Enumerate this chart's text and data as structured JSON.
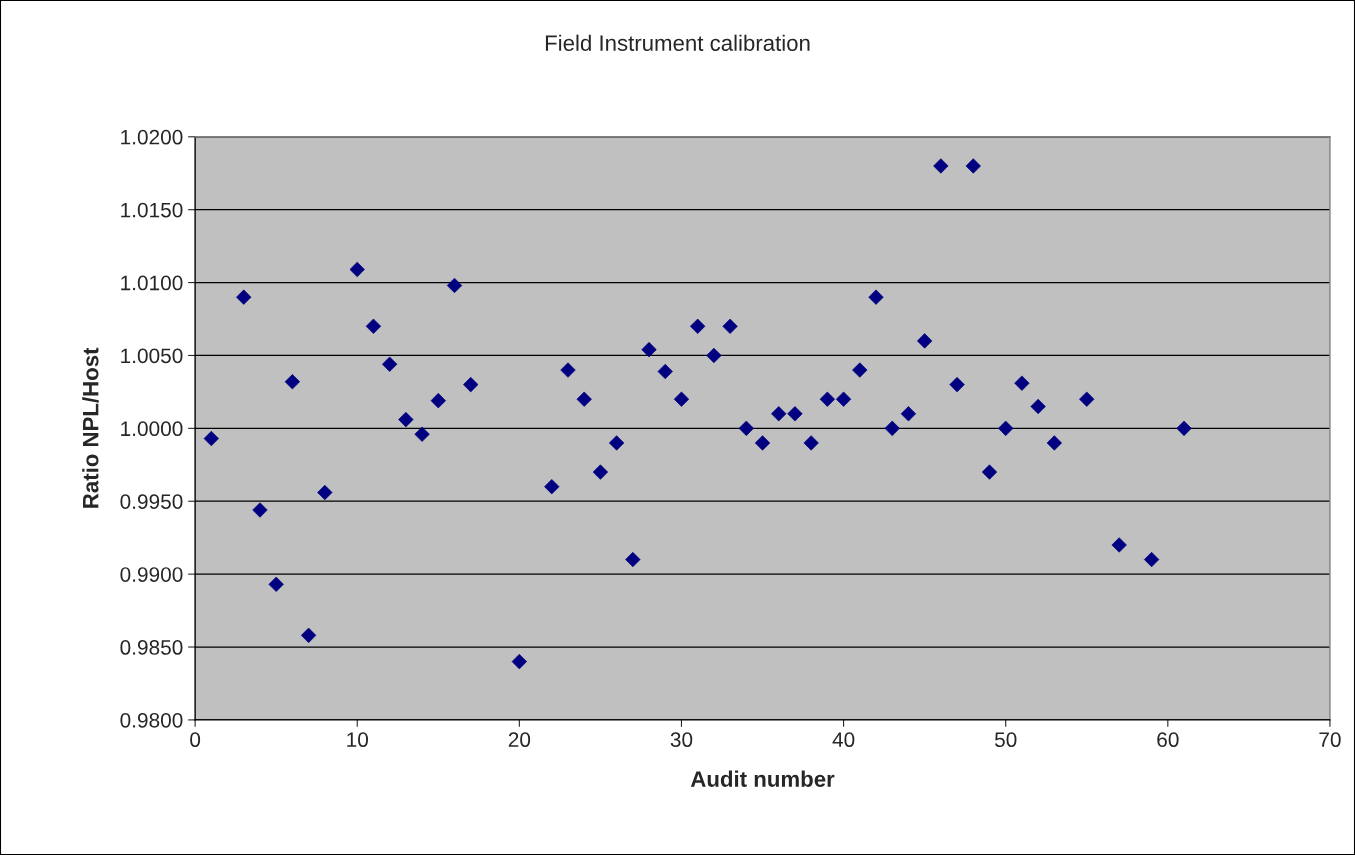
{
  "chart_data": {
    "type": "scatter",
    "title": "Field Instrument calibration",
    "xlabel": "Audit number",
    "ylabel": "Ratio NPL/Host",
    "x": [
      1,
      3,
      4,
      5,
      6,
      7,
      8,
      10,
      11,
      12,
      13,
      14,
      15,
      16,
      17,
      20,
      22,
      23,
      24,
      25,
      26,
      27,
      28,
      29,
      30,
      31,
      32,
      33,
      34,
      35,
      36,
      37,
      38,
      39,
      40,
      41,
      42,
      43,
      44,
      45,
      46,
      47,
      48,
      49,
      50,
      51,
      52,
      53,
      55,
      57,
      59,
      61
    ],
    "series": [
      {
        "color": "#000080",
        "values": [
          0.9993,
          1.009,
          0.9944,
          0.9893,
          1.0032,
          0.9858,
          0.9956,
          1.0109,
          1.007,
          1.0044,
          1.0006,
          0.9996,
          1.0019,
          1.0098,
          1.003,
          0.984,
          0.996,
          1.004,
          1.002,
          0.997,
          0.999,
          0.991,
          1.0054,
          1.0039,
          1.002,
          1.007,
          1.005,
          1.007,
          1.0,
          0.999,
          1.001,
          1.001,
          0.999,
          1.002,
          1.002,
          1.004,
          1.009,
          1.0,
          1.001,
          1.006,
          1.018,
          1.003,
          1.018,
          0.997,
          1.0,
          1.0031,
          1.0015,
          0.999,
          1.002,
          0.992,
          0.991,
          1.0
        ]
      }
    ],
    "marker": "diamond",
    "grid": "y",
    "legend": false,
    "xlim": [
      0,
      70
    ],
    "xticks": [
      0,
      10,
      20,
      30,
      40,
      50,
      60,
      70
    ],
    "ylim": [
      0.98,
      1.02
    ],
    "yticks": [
      {
        "value": 0.98,
        "label": "0.9800"
      },
      {
        "value": 0.985,
        "label": "0.9850"
      },
      {
        "value": 0.99,
        "label": "0.9900"
      },
      {
        "value": 0.995,
        "label": "0.9950"
      },
      {
        "value": 1.0,
        "label": "1.0000"
      },
      {
        "value": 1.005,
        "label": "1.0050"
      },
      {
        "value": 1.01,
        "label": "1.0100"
      },
      {
        "value": 1.015,
        "label": "1.0150"
      },
      {
        "value": 1.02,
        "label": "1.0200"
      }
    ]
  }
}
